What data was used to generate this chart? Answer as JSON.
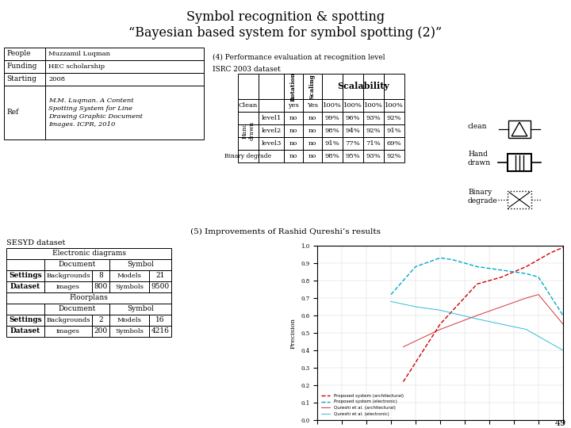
{
  "title_line1": "Symbol recognition & spotting",
  "title_line2": "“Bayesian based system for symbol spotting (2)”",
  "left_table_rows": [
    [
      "People",
      "Muzzamil Luqman"
    ],
    [
      "Funding",
      "HEC scholarship"
    ],
    [
      "Starting",
      "2008"
    ],
    [
      "Ref",
      "M.M. Luqman. A Content\nSpotting System for Line\nDrawing Graphic Document\nImages. ICPR, 2010"
    ]
  ],
  "section4_title": "(4) Performance evaluation at recognition level",
  "isrc_label": "ISRC 2003 dataset",
  "perf_rows": [
    [
      "Clean",
      "",
      "yes",
      "Yes",
      "100%",
      "100%",
      "100%",
      "100%"
    ],
    [
      "",
      "level1",
      "no",
      "no",
      "99%",
      "96%",
      "93%",
      "92%"
    ],
    [
      "",
      "level2",
      "no",
      "no",
      "98%",
      "94%",
      "92%",
      "91%"
    ],
    [
      "",
      "level3",
      "no",
      "no",
      "91%",
      "77%",
      "71%",
      "69%"
    ],
    [
      "Binary degrade",
      "",
      "no",
      "no",
      "98%",
      "95%",
      "93%",
      "92%"
    ]
  ],
  "section5_title": "(5) Improvements of Rashid Qureshi’s results",
  "sesyd_label": "SESYD dataset",
  "page_number": "49",
  "bg_color": "#ffffff"
}
